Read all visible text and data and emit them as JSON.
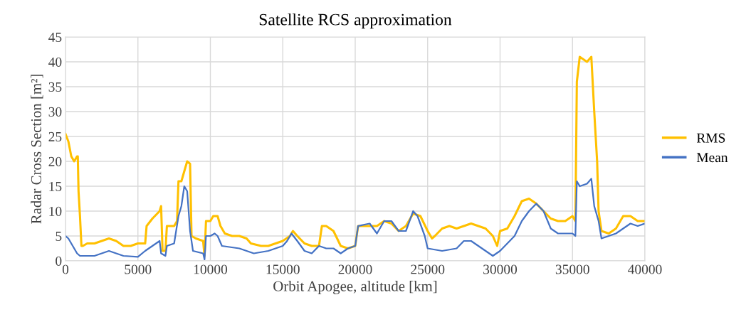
{
  "chart_data": {
    "type": "line",
    "title": "Satellite RCS approximation",
    "xlabel": "Orbit Apogee, altitude [km]",
    "ylabel": "Radar Cross Section [m²]",
    "xlim": [
      0,
      40000
    ],
    "xticks": [
      0,
      5000,
      10000,
      15000,
      20000,
      25000,
      30000,
      35000,
      40000
    ],
    "ylim": [
      0,
      45
    ],
    "yticks": [
      0,
      5,
      10,
      15,
      20,
      25,
      30,
      35,
      40,
      45
    ],
    "grid": true,
    "legend": "right",
    "marker": "none",
    "line_style": "solid",
    "series": [
      {
        "name": "RMS",
        "color": "#ffc000",
        "x": [
          0,
          200,
          400,
          600,
          800,
          850,
          900,
          1000,
          1100,
          1200,
          1500,
          2000,
          2500,
          3000,
          3500,
          4000,
          4500,
          5000,
          5500,
          5600,
          6000,
          6500,
          6600,
          6700,
          6900,
          7000,
          7500,
          7700,
          7800,
          8000,
          8200,
          8400,
          8600,
          8700,
          9000,
          9500,
          9600,
          9700,
          10000,
          10200,
          10500,
          10700,
          11000,
          11500,
          12000,
          12500,
          12800,
          13500,
          14000,
          14500,
          15000,
          15500,
          15700,
          16000,
          16500,
          17000,
          17500,
          17700,
          18000,
          18500,
          19000,
          19500,
          20000,
          20200,
          21000,
          21500,
          22000,
          22500,
          23000,
          23500,
          24000,
          24500,
          25000,
          25300,
          25500,
          26000,
          26500,
          27000,
          27500,
          28000,
          28500,
          29000,
          29500,
          29800,
          30000,
          30500,
          31000,
          31500,
          32000,
          32500,
          33000,
          33500,
          34000,
          34500,
          35000,
          35200,
          35300,
          35500,
          36000,
          36300,
          36500,
          36700,
          36800,
          37000,
          37500,
          38000,
          38500,
          39000,
          39500,
          40000
        ],
        "values": [
          25.5,
          24,
          21,
          20,
          21,
          21,
          14,
          9,
          3,
          3,
          3.5,
          3.5,
          4,
          4.5,
          4,
          3,
          3,
          3.5,
          3.5,
          7,
          8.5,
          10,
          11,
          2,
          2,
          7,
          7,
          8,
          16,
          16,
          18,
          20,
          19.5,
          5,
          4.5,
          4,
          1,
          8,
          8,
          9,
          9,
          7,
          5.5,
          5,
          5,
          4.5,
          3.5,
          3,
          3,
          3.5,
          4,
          5,
          6,
          5,
          3.5,
          3,
          3,
          7,
          7,
          6,
          3,
          2.5,
          3,
          7,
          7,
          7,
          8,
          7.5,
          6,
          7,
          9.5,
          9,
          6,
          4.5,
          5,
          6.5,
          7,
          6.5,
          7,
          7.5,
          7,
          6.5,
          5,
          3,
          6,
          6.5,
          9,
          12,
          12.5,
          11.5,
          10,
          8.5,
          8,
          8,
          9,
          8,
          36,
          41,
          40,
          41,
          30,
          20,
          10,
          6,
          5.5,
          6.5,
          9,
          9,
          8,
          8
        ]
      },
      {
        "name": "Mean",
        "color": "#4472c4",
        "x": [
          0,
          200,
          500,
          800,
          1000,
          2000,
          3000,
          4000,
          5000,
          5500,
          6000,
          6500,
          6600,
          6900,
          7000,
          7500,
          7800,
          8000,
          8200,
          8400,
          8600,
          8800,
          9500,
          9600,
          9700,
          10000,
          10300,
          10500,
          10800,
          12000,
          13000,
          14000,
          15000,
          15300,
          15600,
          16000,
          16500,
          17000,
          17500,
          18000,
          18500,
          19000,
          19500,
          20000,
          20200,
          21000,
          21500,
          22000,
          22500,
          23000,
          23500,
          24000,
          24300,
          24800,
          25000,
          26000,
          27000,
          27500,
          28000,
          28500,
          29000,
          29500,
          30000,
          30500,
          31000,
          31500,
          32000,
          32500,
          33000,
          33500,
          34000,
          35000,
          35200,
          35300,
          35500,
          36000,
          36300,
          36500,
          36800,
          37000,
          37500,
          38000,
          38500,
          39000,
          39500,
          40000
        ],
        "values": [
          5,
          4.5,
          3,
          1.5,
          1,
          1,
          2,
          1,
          0.8,
          2,
          3,
          4,
          1.5,
          1,
          3,
          3.5,
          9,
          11,
          15,
          14,
          6,
          2,
          1.5,
          0.3,
          5,
          5,
          5.5,
          5,
          3,
          2.5,
          1.5,
          2,
          3,
          4,
          5.5,
          4,
          2,
          1.5,
          3,
          2.5,
          2.5,
          1.5,
          2.5,
          3,
          7,
          7.5,
          5.5,
          8,
          8,
          6,
          6,
          10,
          9,
          5,
          2.5,
          2,
          2.5,
          4,
          4,
          3,
          2,
          1,
          2,
          3.5,
          5,
          8,
          10,
          11.5,
          10,
          6.5,
          5.5,
          5.5,
          5,
          16,
          15,
          15.5,
          16.5,
          11,
          8,
          4.5,
          5,
          5.5,
          6.5,
          7.5,
          7,
          7.5
        ]
      }
    ]
  }
}
